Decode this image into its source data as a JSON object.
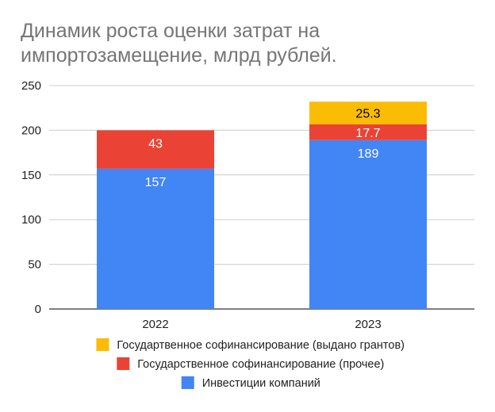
{
  "chart_data": {
    "type": "bar",
    "stacked": true,
    "title_lines": [
      "Динамик роста оценки затрат на",
      "импортозамещение, млрд рублей."
    ],
    "categories": [
      "2022",
      "2023"
    ],
    "series": [
      {
        "name": "Инвестиции компаний",
        "values": [
          157,
          189
        ],
        "color": "#4285F4",
        "label_color": "#ffffff"
      },
      {
        "name": "Государственное софинансирование (прочее)",
        "values": [
          43,
          17.7
        ],
        "color": "#EA4335",
        "label_color": "#ffffff"
      },
      {
        "name": "Государтвенное софинансирование (выдано грантов)",
        "values": [
          null,
          25.3
        ],
        "color": "#FBBC04",
        "label_color": "#000000"
      }
    ],
    "ylim": [
      0,
      250
    ],
    "yticks": [
      "0",
      "50",
      "100",
      "150",
      "200",
      "250"
    ],
    "xlabel": "",
    "ylabel": "",
    "grid": true,
    "legend_position": "bottom",
    "legend_order": [
      2,
      1,
      0
    ]
  }
}
